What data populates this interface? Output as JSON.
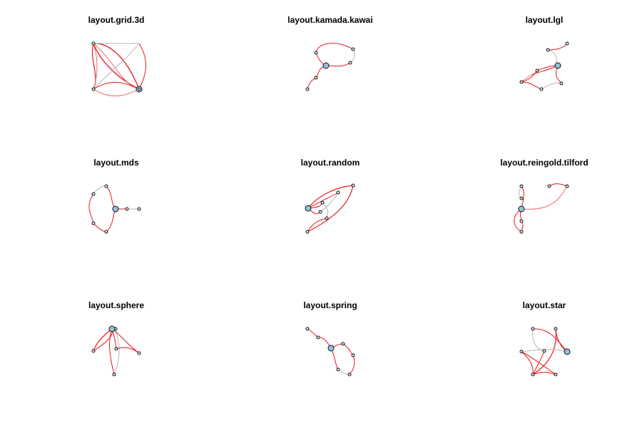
{
  "colors": {
    "edge_red": "#e8171e",
    "edge_red_light": "#f06a6a",
    "edge_gray": "#b5b5b5",
    "hub_fill": "#8fc3dc",
    "node_fill": "#dbe6ee",
    "node_stroke": "#111111"
  },
  "panels": [
    {
      "title": "layout.grid.3d"
    },
    {
      "title": "layout.kamada.kawai"
    },
    {
      "title": "layout.lgl"
    },
    {
      "title": "layout.mds"
    },
    {
      "title": "layout.random"
    },
    {
      "title": "layout.reingold.tilford"
    },
    {
      "title": "layout.sphere"
    },
    {
      "title": "layout.spring"
    },
    {
      "title": "layout.star"
    }
  ]
}
